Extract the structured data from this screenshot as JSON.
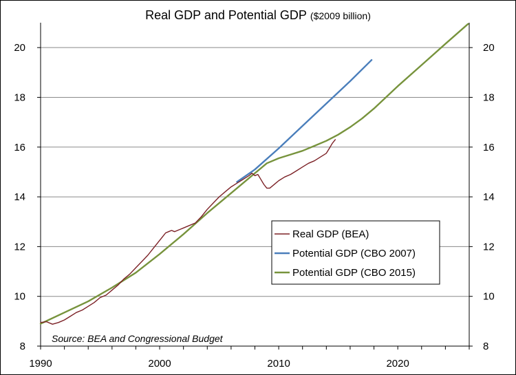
{
  "chart_data": {
    "type": "line",
    "title": "Real GDP and Potential GDP",
    "subtitle": "($2009 billion)",
    "note": "Source: BEA and Congressional Budget",
    "xlim": [
      1990,
      2026
    ],
    "ylim": [
      8,
      21
    ],
    "x_ticks": [
      1990,
      2000,
      2010,
      2020
    ],
    "y_ticks": [
      8,
      10,
      12,
      14,
      16,
      18,
      20
    ],
    "grid": "horizontal",
    "legend_position": "center-right",
    "series": [
      {
        "name": "Real GDP (BEA)",
        "color": "#7B2025",
        "x": [
          1990.0,
          1990.5,
          1991.0,
          1991.5,
          1992.0,
          1992.5,
          1993.0,
          1993.5,
          1994.0,
          1994.5,
          1995.0,
          1995.5,
          1996.0,
          1996.5,
          1997.0,
          1997.5,
          1998.0,
          1998.5,
          1999.0,
          1999.5,
          2000.0,
          2000.25,
          2000.5,
          2000.75,
          2001.0,
          2001.25,
          2001.5,
          2001.75,
          2002.0,
          2002.5,
          2003.0,
          2003.5,
          2004.0,
          2004.5,
          2005.0,
          2005.5,
          2006.0,
          2006.5,
          2007.0,
          2007.5,
          2007.75,
          2008.0,
          2008.25,
          2008.5,
          2008.75,
          2009.0,
          2009.25,
          2009.5,
          2009.75,
          2010.0,
          2010.5,
          2011.0,
          2011.5,
          2012.0,
          2012.5,
          2013.0,
          2013.5,
          2014.0,
          2014.25,
          2014.5,
          2014.75
        ],
        "y": [
          8.95,
          8.98,
          8.88,
          8.95,
          9.05,
          9.2,
          9.35,
          9.45,
          9.6,
          9.75,
          9.95,
          10.05,
          10.25,
          10.45,
          10.7,
          10.9,
          11.15,
          11.4,
          11.65,
          11.95,
          12.25,
          12.4,
          12.55,
          12.6,
          12.65,
          12.6,
          12.65,
          12.7,
          12.75,
          12.85,
          12.95,
          13.2,
          13.5,
          13.75,
          14.0,
          14.2,
          14.4,
          14.55,
          14.7,
          14.85,
          14.95,
          14.85,
          14.9,
          14.7,
          14.5,
          14.35,
          14.35,
          14.45,
          14.55,
          14.65,
          14.8,
          14.9,
          15.05,
          15.2,
          15.35,
          15.45,
          15.6,
          15.75,
          15.95,
          16.15,
          16.3
        ]
      },
      {
        "name": "Potential GDP (CBO 2007)",
        "color": "#4A7EBB",
        "x": [
          2006.5,
          2008.0,
          2010.0,
          2012.0,
          2014.0,
          2016.0,
          2017.8
        ],
        "y": [
          14.6,
          15.1,
          15.95,
          16.85,
          17.75,
          18.65,
          19.5
        ]
      },
      {
        "name": "Potential GDP (CBO 2015)",
        "color": "#77933C",
        "x": [
          1990.0,
          1992.0,
          1994.0,
          1996.0,
          1998.0,
          2000.0,
          2002.0,
          2004.0,
          2006.0,
          2008.0,
          2009.0,
          2010.0,
          2011.0,
          2012.0,
          2013.0,
          2014.0,
          2015.0,
          2016.0,
          2017.0,
          2018.0,
          2019.0,
          2020.0,
          2022.0,
          2024.0,
          2025.9
        ],
        "y": [
          8.9,
          9.35,
          9.8,
          10.35,
          10.95,
          11.7,
          12.5,
          13.35,
          14.15,
          14.95,
          15.35,
          15.55,
          15.7,
          15.85,
          16.05,
          16.25,
          16.5,
          16.8,
          17.15,
          17.55,
          18.0,
          18.45,
          19.3,
          20.15,
          20.95
        ]
      }
    ]
  }
}
